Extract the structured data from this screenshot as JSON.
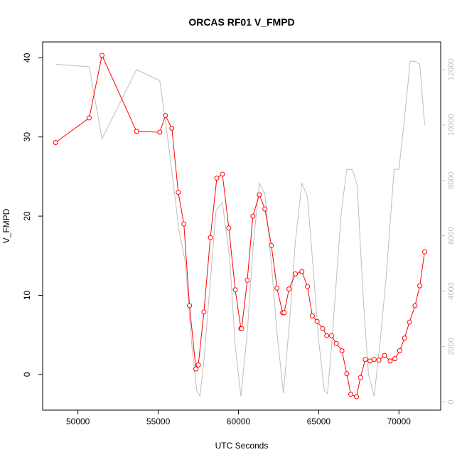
{
  "chart_data": {
    "type": "line",
    "title": "ORCAS RF01 V_FMPD",
    "xlabel": "UTC Seconds",
    "ylabel": "V_FMPD",
    "xlim": [
      47800,
      72600
    ],
    "ylim": [
      -4.5,
      42
    ],
    "y2lim": [
      -300,
      13000
    ],
    "x_ticks": [
      50000,
      55000,
      60000,
      65000,
      70000
    ],
    "y_ticks": [
      0,
      10,
      20,
      30,
      40
    ],
    "y2_ticks": [
      0,
      2000,
      4000,
      6000,
      8000,
      10000,
      12000
    ],
    "grid": false,
    "colors": {
      "primary": "#ff0000",
      "secondary": "#bebebe",
      "axis": "#000000"
    },
    "series": [
      {
        "axis": "left",
        "style": "line-points",
        "color": "#ff0000",
        "x": [
          48600,
          50700,
          51500,
          53650,
          55100,
          55450,
          55850,
          56250,
          56600,
          56950,
          57350,
          57500,
          57850,
          58250,
          58650,
          59000,
          59400,
          59800,
          60150,
          60200,
          60550,
          60900,
          61300,
          61650,
          62050,
          62400,
          62750,
          62850,
          63150,
          63550,
          63950,
          64300,
          64600,
          64900,
          65250,
          65500,
          65800,
          66100,
          66450,
          66750,
          67000,
          67350,
          67600,
          67900,
          68200,
          68450,
          68750,
          69100,
          69450,
          69750,
          70050,
          70350,
          70650,
          71000,
          71300,
          71600
        ],
        "y": [
          29.3,
          32.4,
          40.3,
          30.7,
          30.6,
          32.7,
          31.1,
          23.0,
          19.0,
          8.7,
          0.7,
          1.2,
          7.9,
          17.3,
          24.8,
          25.3,
          18.5,
          10.7,
          5.8,
          5.8,
          11.9,
          20.0,
          22.7,
          20.9,
          16.3,
          10.9,
          7.8,
          7.8,
          10.8,
          12.7,
          13.0,
          11.1,
          7.4,
          6.7,
          5.8,
          4.9,
          4.9,
          3.9,
          3.0,
          0.1,
          -2.5,
          -2.8,
          -0.4,
          1.9,
          1.7,
          1.9,
          1.8,
          2.4,
          1.7,
          2.0,
          3.0,
          4.6,
          6.6,
          8.7,
          11.2,
          15.5
        ]
      },
      {
        "axis": "right",
        "style": "line",
        "color": "#bebebe",
        "x": [
          48600,
          50700,
          51500,
          53650,
          55100,
          55600,
          56300,
          56700,
          57100,
          57400,
          57600,
          57850,
          58200,
          58600,
          59000,
          59450,
          59800,
          60150,
          60550,
          60900,
          61300,
          61650,
          62050,
          62400,
          62800,
          63200,
          63550,
          63950,
          64300,
          64700,
          65000,
          65350,
          65550,
          65800,
          66050,
          66400,
          66750,
          67100,
          67400,
          67800,
          68100,
          68450,
          68800,
          69200,
          69700,
          70000,
          70300,
          70700,
          71000,
          71300,
          71600
        ],
        "y": [
          12200,
          12100,
          9500,
          12000,
          11600,
          9500,
          6200,
          5000,
          2000,
          400,
          200,
          1500,
          4000,
          6900,
          7200,
          5200,
          2000,
          200,
          2500,
          5500,
          7900,
          7500,
          5000,
          2500,
          300,
          3000,
          5800,
          7900,
          7400,
          4500,
          2200,
          400,
          300,
          2000,
          4000,
          6800,
          8400,
          8400,
          7800,
          3500,
          1000,
          200,
          2000,
          4500,
          8400,
          8400,
          10000,
          12300,
          12300,
          12200,
          10000
        ]
      }
    ]
  }
}
